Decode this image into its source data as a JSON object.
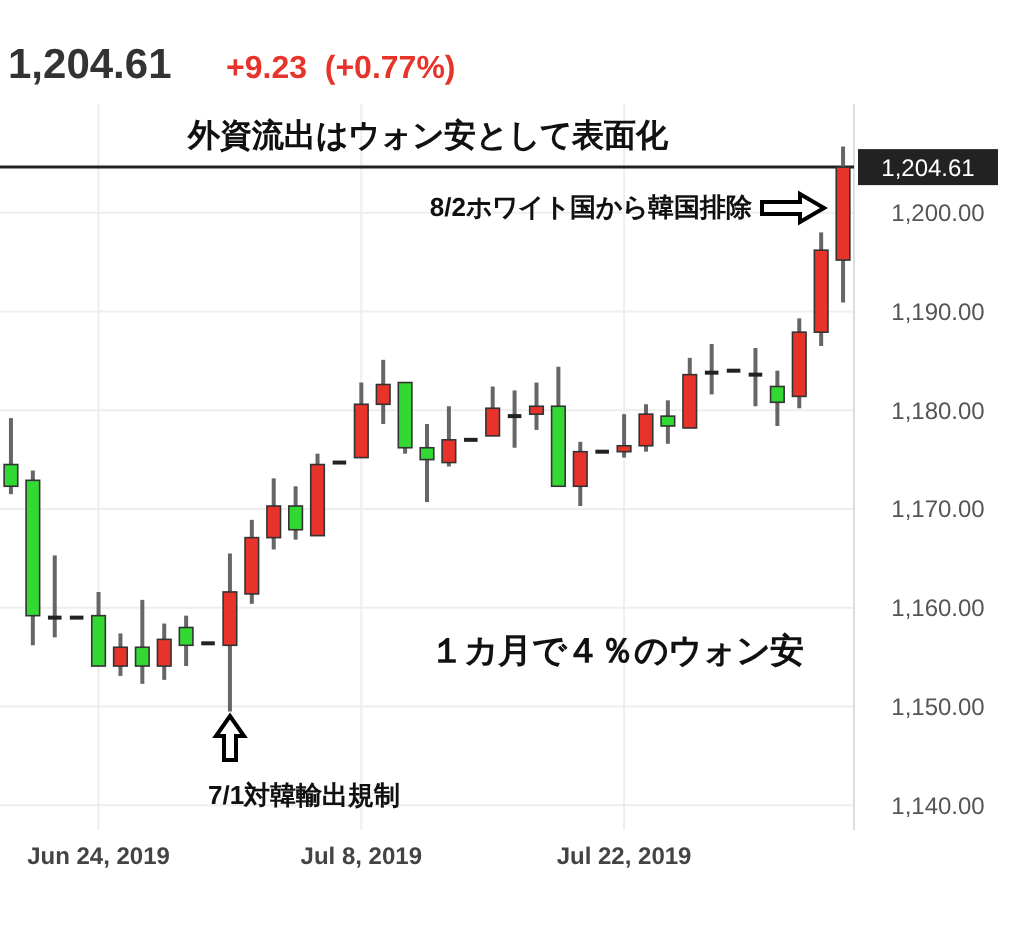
{
  "chart_data": {
    "type": "candlestick",
    "title": "1,204.61",
    "subtitle": "+9.23  (+0.77%)",
    "categories": [
      null,
      null,
      null,
      null,
      "Jun 24, 2019",
      null,
      null,
      null,
      null,
      null,
      null,
      null,
      null,
      null,
      null,
      null,
      "Jul 8, 2019",
      null,
      null,
      null,
      null,
      null,
      null,
      null,
      null,
      null,
      null,
      null,
      "Jul 22, 2019",
      null,
      null,
      null,
      null,
      null,
      null,
      null,
      null,
      null,
      null
    ],
    "ohlc": [
      [
        1174.5,
        1179.2,
        1171.5,
        1172.3
      ],
      [
        1172.9,
        1173.9,
        1156.2,
        1159.2
      ],
      [
        1159.0,
        1165.3,
        1157.0,
        1159.0
      ],
      [
        1159.0,
        1159.0,
        1159.0,
        1159.0
      ],
      [
        1159.2,
        1161.6,
        1154.1,
        1154.1
      ],
      [
        1154.1,
        1157.4,
        1153.1,
        1156.0
      ],
      [
        1156.0,
        1160.8,
        1152.3,
        1154.1
      ],
      [
        1154.1,
        1158.4,
        1152.7,
        1156.8
      ],
      [
        1158.0,
        1159.2,
        1154.1,
        1156.2
      ],
      [
        1156.4,
        1156.4,
        1156.4,
        1156.4
      ],
      [
        1156.2,
        1165.5,
        1149.5,
        1161.6
      ],
      [
        1161.4,
        1168.9,
        1160.4,
        1167.1
      ],
      [
        1167.1,
        1173.1,
        1165.9,
        1170.3
      ],
      [
        1170.3,
        1172.3,
        1166.9,
        1167.9
      ],
      [
        1167.3,
        1175.6,
        1167.3,
        1174.5
      ],
      [
        1174.7,
        1174.7,
        1174.7,
        1174.7
      ],
      [
        1175.2,
        1182.8,
        1175.2,
        1180.6
      ],
      [
        1180.6,
        1185.1,
        1178.6,
        1182.6
      ],
      [
        1182.8,
        1182.8,
        1175.6,
        1176.2
      ],
      [
        1176.2,
        1178.6,
        1170.7,
        1175.0
      ],
      [
        1174.7,
        1180.4,
        1174.3,
        1177.0
      ],
      [
        1177.0,
        1177.0,
        1177.0,
        1177.0
      ],
      [
        1177.4,
        1182.4,
        1177.4,
        1180.2
      ],
      [
        1179.4,
        1182.0,
        1176.2,
        1179.4
      ],
      [
        1179.6,
        1182.8,
        1178.0,
        1180.4
      ],
      [
        1180.4,
        1184.4,
        1172.3,
        1172.3
      ],
      [
        1172.3,
        1176.8,
        1170.3,
        1175.8
      ],
      [
        1175.8,
        1175.8,
        1175.8,
        1175.8
      ],
      [
        1175.8,
        1179.6,
        1175.2,
        1176.4
      ],
      [
        1176.4,
        1180.6,
        1175.8,
        1179.6
      ],
      [
        1179.4,
        1181.0,
        1176.6,
        1178.4
      ],
      [
        1178.2,
        1185.3,
        1178.2,
        1183.6
      ],
      [
        1183.8,
        1186.7,
        1181.6,
        1183.8
      ],
      [
        1184.0,
        1184.0,
        1184.0,
        1184.0
      ],
      [
        1183.6,
        1186.3,
        1180.4,
        1183.6
      ],
      [
        1182.4,
        1184.0,
        1178.4,
        1180.8
      ],
      [
        1181.4,
        1189.3,
        1180.2,
        1187.9
      ],
      [
        1187.9,
        1198.0,
        1186.5,
        1196.2
      ],
      [
        1195.2,
        1206.7,
        1190.9,
        1204.61
      ]
    ],
    "colors": [
      "#33d933",
      "#33d933",
      "#222222",
      "#222222",
      "#33d933",
      "#e8332a",
      "#33d933",
      "#e8332a",
      "#33d933",
      "#222222",
      "#e8332a",
      "#e8332a",
      "#e8332a",
      "#33d933",
      "#e8332a",
      "#222222",
      "#e8332a",
      "#e8332a",
      "#33d933",
      "#33d933",
      "#e8332a",
      "#222222",
      "#e8332a",
      "#222222",
      "#e8332a",
      "#33d933",
      "#e8332a",
      "#222222",
      "#e8332a",
      "#e8332a",
      "#33d933",
      "#e8332a",
      "#222222",
      "#222222",
      "#222222",
      "#33d933",
      "#e8332a",
      "#e8332a",
      "#e8332a"
    ],
    "ylim": [
      1137.5,
      1211
    ],
    "yticks": [
      {
        "value": 1140,
        "label": "1,140.00"
      },
      {
        "value": 1150,
        "label": "1,150.00"
      },
      {
        "value": 1160,
        "label": "1,160.00"
      },
      {
        "value": 1170,
        "label": "1,170.00"
      },
      {
        "value": 1180,
        "label": "1,180.00"
      },
      {
        "value": 1190,
        "label": "1,190.00"
      },
      {
        "value": 1200,
        "label": "1,200.00"
      }
    ],
    "grid": true,
    "ref_lines": [
      {
        "axis": "y",
        "value": 1204.61,
        "label": "1,204.61",
        "color": "#222222"
      }
    ],
    "annotations": [
      "外資流出はウォン安として表面化",
      "8/2ホワイト国から韓国排除",
      "7/1対韓輸出規制",
      "１カ月で４％のウォン安"
    ]
  }
}
